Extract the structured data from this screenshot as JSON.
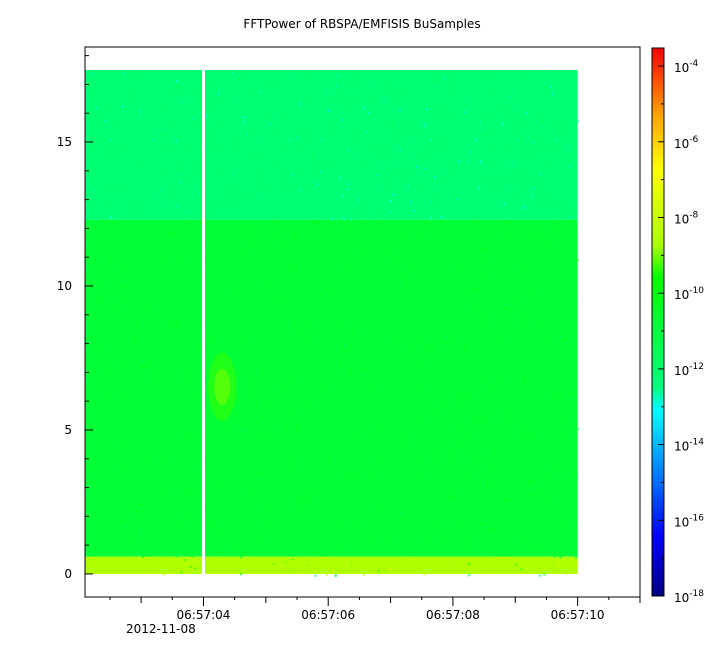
{
  "chart_data": {
    "type": "heatmap",
    "title": "FFTPower of RBSPA/EMFISIS  BuSamples",
    "xlabel": "",
    "ylabel": "",
    "x_tick_labels": [
      "06:57:04",
      "06:57:06",
      "06:57:08",
      "06:57:10"
    ],
    "x_date_label": "2012-11-08",
    "x_range_seconds": [
      2.1,
      11.0
    ],
    "y_ticks": [
      0,
      5,
      10,
      15
    ],
    "ylim": [
      -0.8,
      18.3
    ],
    "data_time_range_seconds": [
      2.1,
      10.0
    ],
    "data_freq_range": [
      -0.05,
      17.5
    ],
    "gap_time_seconds": 4.0,
    "colorbar": {
      "scale": "log",
      "range": [
        1e-18,
        0.0003
      ],
      "tick_base": "10",
      "tick_exponents": [
        "-4",
        "-6",
        "-8",
        "-10",
        "-12",
        "-14",
        "-16",
        "-18"
      ]
    },
    "bands": [
      {
        "freq_range": [
          12.3,
          17.5
        ],
        "log_power": -12.2,
        "description": "upper band"
      },
      {
        "freq_range": [
          0.6,
          12.3
        ],
        "log_power": -10.8,
        "description": "main band"
      },
      {
        "freq_range": [
          0.0,
          0.6
        ],
        "log_power": -8.6,
        "description": "low-frequency band"
      }
    ],
    "features": [
      {
        "time_seconds": 4.3,
        "freq": 6.5,
        "log_power": -9.3,
        "description": "enhanced power blob"
      }
    ],
    "grid": false,
    "legend": "colorbar-right"
  }
}
